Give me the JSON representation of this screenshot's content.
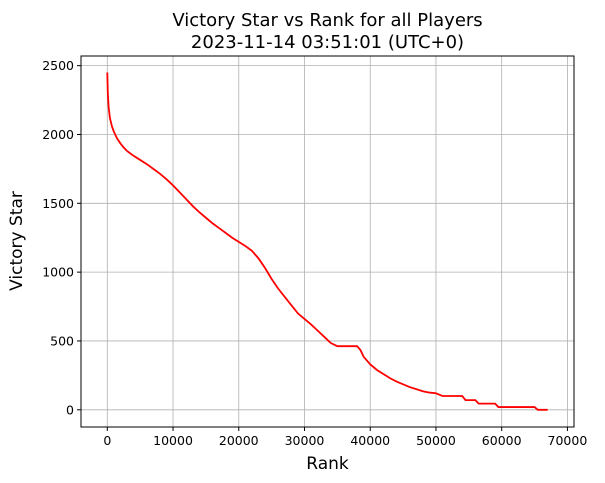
{
  "chart_data": {
    "type": "line",
    "title": "Victory Star vs Rank for all Players",
    "subtitle": "2023-11-14 03:51:01 (UTC+0)",
    "xlabel": "Rank",
    "ylabel": "Victory Star",
    "xlim": [
      -4000,
      71000
    ],
    "ylim": [
      -125,
      2570
    ],
    "xticks": [
      0,
      10000,
      20000,
      30000,
      40000,
      50000,
      60000,
      70000
    ],
    "yticks": [
      0,
      500,
      1000,
      1500,
      2000,
      2500
    ],
    "grid": true,
    "series": [
      {
        "color": "#ff0000",
        "x": [
          0,
          80,
          200,
          400,
          700,
          1000,
          1500,
          2000,
          2500,
          3000,
          4000,
          5000,
          6000,
          7000,
          8000,
          9000,
          10000,
          11000,
          12000,
          13000,
          14000,
          15000,
          16000,
          17000,
          18000,
          19000,
          20000,
          21000,
          22000,
          23000,
          24000,
          25000,
          26000,
          27000,
          28000,
          29000,
          30000,
          31000,
          32000,
          33000,
          34000,
          35000,
          36000,
          37000,
          38000,
          38500,
          39000,
          40000,
          41000,
          42000,
          43000,
          44000,
          45000,
          46000,
          47000,
          48000,
          49000,
          50000,
          51000,
          52000,
          53000,
          54000,
          54500,
          55500,
          56000,
          56500,
          58000,
          59000,
          59500,
          60000,
          62000,
          64000,
          65000,
          65500,
          66000,
          67000
        ],
        "y": [
          2450,
          2300,
          2200,
          2120,
          2060,
          2020,
          1970,
          1935,
          1905,
          1880,
          1845,
          1815,
          1785,
          1750,
          1715,
          1675,
          1630,
          1580,
          1530,
          1480,
          1435,
          1395,
          1355,
          1320,
          1285,
          1250,
          1220,
          1190,
          1155,
          1100,
          1030,
          950,
          880,
          820,
          760,
          700,
          660,
          620,
          575,
          530,
          485,
          462,
          462,
          462,
          462,
          435,
          385,
          330,
          290,
          260,
          230,
          205,
          185,
          165,
          150,
          135,
          125,
          120,
          100,
          100,
          100,
          100,
          70,
          70,
          70,
          45,
          45,
          45,
          20,
          20,
          20,
          20,
          20,
          0,
          0,
          0
        ]
      }
    ]
  }
}
